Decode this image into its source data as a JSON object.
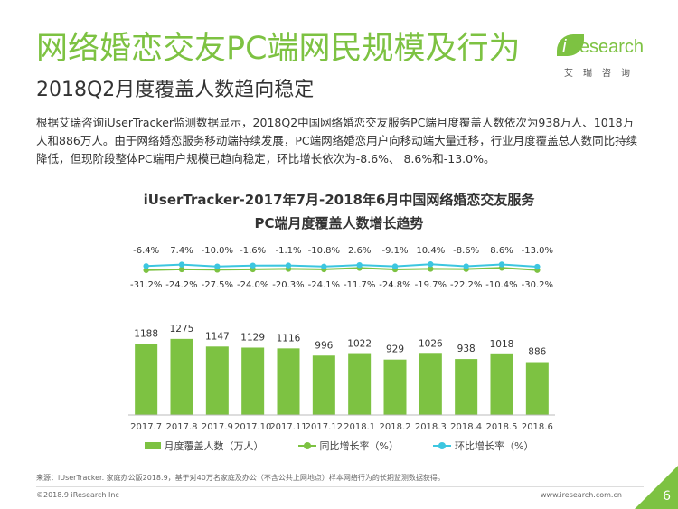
{
  "header": {
    "title": "网络婚恋交友PC端网民规模及行为",
    "subtitle": "2018Q2月度覆盖人数趋向稳定",
    "logo_brand_i": "i",
    "logo_brand_rest": "Research",
    "logo_cn": "艾瑞咨询"
  },
  "intro": "根据艾瑞咨询iUserTracker监测数据显示，2018Q2中国网络婚恋交友服务PC端月度覆盖人数依次为938万人、1018万人和886万人。由于网络婚恋服务移动端持续发展，PC端网络婚恋用户向移动端大量迁移，行业月度覆盖总人数同比持续降低，但现阶段整体PC端用户规模已趋向稳定，环比增长依次为-8.6%、 8.6%和-13.0%。",
  "chart_data": {
    "type": "bar",
    "title": "iUserTracker-2017年7月-2018年6月中国网络婚恋交友服务",
    "subtitle": "PC端月度覆盖人数增长趋势",
    "categories": [
      "2017.7",
      "2017.8",
      "2017.9",
      "2017.10",
      "2017.11",
      "2017.12",
      "2018.1",
      "2018.2",
      "2018.3",
      "2018.4",
      "2018.5",
      "2018.6"
    ],
    "category_labels": [
      "2017.7",
      "2017.8",
      "2017.9",
      "2017.10",
      "2017.11",
      "2017.12",
      "2018.1",
      "2018.2",
      "2018.3",
      "2018.4",
      "2018.5",
      "2018.6"
    ],
    "series": [
      {
        "name": "月度覆盖人数（万人）",
        "type": "bar",
        "color": "#7dc242",
        "values": [
          1188,
          1275,
          1147,
          1129,
          1116,
          996,
          1022,
          929,
          1026,
          938,
          1018,
          886
        ]
      },
      {
        "name": "同比增长率（%）",
        "type": "line",
        "color": "#7dc242",
        "values": [
          -31.2,
          -24.2,
          -27.5,
          -24.0,
          -20.3,
          -24.1,
          -11.7,
          -24.8,
          -19.7,
          -22.2,
          -10.4,
          -30.2
        ],
        "labels": [
          "-31.2%",
          "-24.2%",
          "-27.5%",
          "-24.0%",
          "-20.3%",
          "-24.1%",
          "-11.7%",
          "-24.8%",
          "-19.7%",
          "-22.2%",
          "-10.4%",
          "-30.2%"
        ]
      },
      {
        "name": "环比增长率（%）",
        "type": "line",
        "color": "#3cc6e0",
        "values": [
          -6.4,
          7.4,
          -10.0,
          -1.6,
          -1.1,
          -10.8,
          2.6,
          -9.1,
          10.4,
          -8.6,
          8.6,
          -13.0
        ],
        "labels": [
          "-6.4%",
          "7.4%",
          "-10.0%",
          "-1.6%",
          "-1.1%",
          "-10.8%",
          "2.6%",
          "-9.1%",
          "10.4%",
          "-8.6%",
          "8.6%",
          "-13.0%"
        ]
      }
    ],
    "legend_position": "bottom",
    "grid": false
  },
  "footer": {
    "source": "来源：iUserTracker. 家庭办公版2018.9，基于对40万名家庭及办公（不含公共上网地点）样本网络行为的长期监测数据获得。",
    "copyright": "©2018.9 iResearch Inc",
    "website": "www.iresearch.com.cn",
    "page": "6"
  }
}
